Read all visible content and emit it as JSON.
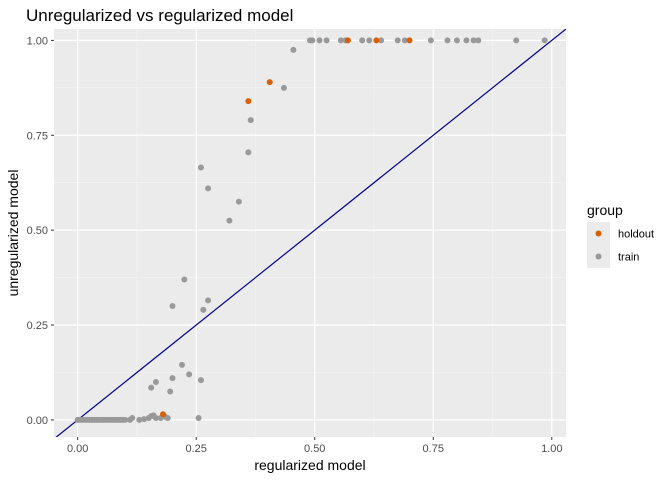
{
  "chart_data": {
    "type": "scatter",
    "title": "Unregularized vs regularized model",
    "xlabel": "regularized model",
    "ylabel": "unregularized model",
    "xlim": [
      -0.05,
      1.03
    ],
    "ylim": [
      -0.045,
      1.03
    ],
    "x_ticks": [
      0,
      0.25,
      0.5,
      0.75,
      1
    ],
    "x_tick_labels": [
      "0.00",
      "0.25",
      "0.50",
      "0.75",
      "1.00"
    ],
    "y_ticks": [
      0,
      0.25,
      0.5,
      0.75,
      1
    ],
    "y_tick_labels": [
      "0.00",
      "0.25",
      "0.50",
      "0.75",
      "1.00"
    ],
    "grid": true,
    "reference_line": {
      "slope": 1,
      "intercept": 0,
      "color": "#00008b"
    },
    "legend": {
      "title": "group",
      "placement": "right"
    },
    "series": [
      {
        "name": "holdout",
        "color": "#d95f02",
        "points": [
          [
            0.18,
            0.015
          ],
          [
            0.36,
            0.84
          ],
          [
            0.405,
            0.89
          ],
          [
            0.57,
            1.0
          ],
          [
            0.63,
            1.0
          ],
          [
            0.7,
            1.0
          ]
        ]
      },
      {
        "name": "train",
        "color": "#999999",
        "points": [
          [
            0.0,
            0.0
          ],
          [
            0.005,
            0.0
          ],
          [
            0.01,
            0.0
          ],
          [
            0.015,
            0.0
          ],
          [
            0.02,
            0.0
          ],
          [
            0.025,
            0.0
          ],
          [
            0.03,
            0.0
          ],
          [
            0.035,
            0.0
          ],
          [
            0.04,
            0.0
          ],
          [
            0.045,
            0.0
          ],
          [
            0.05,
            0.0
          ],
          [
            0.055,
            0.0
          ],
          [
            0.06,
            0.0
          ],
          [
            0.065,
            0.0
          ],
          [
            0.07,
            0.0
          ],
          [
            0.075,
            0.0
          ],
          [
            0.08,
            0.0
          ],
          [
            0.085,
            0.0
          ],
          [
            0.09,
            0.0
          ],
          [
            0.095,
            0.0
          ],
          [
            0.1,
            0.0
          ],
          [
            0.11,
            0.0
          ],
          [
            0.115,
            0.005
          ],
          [
            0.13,
            0.0
          ],
          [
            0.14,
            0.002
          ],
          [
            0.15,
            0.005
          ],
          [
            0.155,
            0.01
          ],
          [
            0.16,
            0.012
          ],
          [
            0.165,
            0.005
          ],
          [
            0.175,
            0.005
          ],
          [
            0.185,
            0.008
          ],
          [
            0.19,
            0.005
          ],
          [
            0.155,
            0.085
          ],
          [
            0.165,
            0.1
          ],
          [
            0.195,
            0.075
          ],
          [
            0.2,
            0.11
          ],
          [
            0.22,
            0.145
          ],
          [
            0.235,
            0.12
          ],
          [
            0.26,
            0.105
          ],
          [
            0.255,
            0.005
          ],
          [
            0.2,
            0.3
          ],
          [
            0.225,
            0.37
          ],
          [
            0.265,
            0.29
          ],
          [
            0.275,
            0.315
          ],
          [
            0.26,
            0.665
          ],
          [
            0.275,
            0.61
          ],
          [
            0.32,
            0.525
          ],
          [
            0.34,
            0.575
          ],
          [
            0.36,
            0.705
          ],
          [
            0.365,
            0.79
          ],
          [
            0.435,
            0.875
          ],
          [
            0.455,
            0.975
          ],
          [
            0.49,
            1.0
          ],
          [
            0.495,
            1.0
          ],
          [
            0.51,
            1.0
          ],
          [
            0.525,
            1.0
          ],
          [
            0.555,
            1.0
          ],
          [
            0.565,
            1.0
          ],
          [
            0.6,
            1.0
          ],
          [
            0.615,
            1.0
          ],
          [
            0.64,
            1.0
          ],
          [
            0.675,
            1.0
          ],
          [
            0.69,
            1.0
          ],
          [
            0.745,
            1.0
          ],
          [
            0.78,
            1.0
          ],
          [
            0.8,
            1.0
          ],
          [
            0.82,
            1.0
          ],
          [
            0.835,
            1.0
          ],
          [
            0.845,
            1.0
          ],
          [
            0.925,
            1.0
          ],
          [
            0.985,
            1.0
          ]
        ]
      }
    ]
  }
}
